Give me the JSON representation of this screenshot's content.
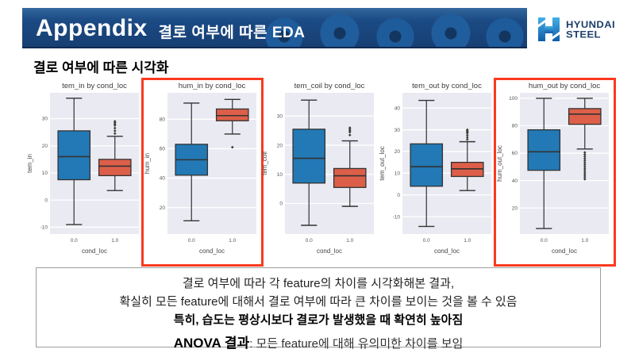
{
  "header": {
    "title": "Appendix",
    "subtitle": "결로 여부에 따른 EDA"
  },
  "logo": {
    "line1": "HYUNDAI",
    "line2": "STEEL"
  },
  "section_title": "결로 여부에 따른 시각화",
  "colors": {
    "header_bg": "#1b4a84",
    "header_text": "#ffffff",
    "logo_navy": "#1c3f69",
    "logo_blue_light": "#45b0e6",
    "logo_blue_dark": "#0f5ca8",
    "highlight_red": "#f93a1f",
    "box_blue": "#2279b5",
    "box_red": "#dd5f49",
    "plot_bg": "#eaeaf2",
    "grid": "#ffffff",
    "box_edge": "#333333",
    "summary_border": "#9c9c9c"
  },
  "chart_data": [
    {
      "type": "box",
      "title": "tem_in by cond_loc",
      "ylabel": "tem_in",
      "xlabel": "cond_loc",
      "categories": [
        "0.0",
        "1.0"
      ],
      "yticks": [
        -10,
        0,
        10,
        20,
        30
      ],
      "ylim": [
        -12.5,
        39.5
      ],
      "highlighted": false,
      "grid": true,
      "boxes": [
        {
          "category": "0.0",
          "color": "#2279b5",
          "whislo": -9,
          "q1": 7.5,
          "med": 16,
          "q3": 25.5,
          "whishi": 37.5,
          "outliers": []
        },
        {
          "category": "1.0",
          "color": "#dd5f49",
          "whislo": 3.5,
          "q1": 9,
          "med": 12.5,
          "q3": 15,
          "whishi": 23.5,
          "outliers": [
            24.5,
            25.5,
            26.5,
            27.5,
            28,
            28.5,
            29
          ]
        }
      ]
    },
    {
      "type": "box",
      "title": "hum_in by cond_loc",
      "ylabel": "hum_in",
      "xlabel": "cond_loc",
      "categories": [
        "0.0",
        "1.0"
      ],
      "yticks": [
        20,
        40,
        60,
        80
      ],
      "ylim": [
        2,
        98
      ],
      "highlighted": true,
      "grid": true,
      "boxes": [
        {
          "category": "0.0",
          "color": "#2279b5",
          "whislo": 11,
          "q1": 42,
          "med": 52.5,
          "q3": 63,
          "whishi": 91,
          "outliers": []
        },
        {
          "category": "1.0",
          "color": "#dd5f49",
          "whislo": 70,
          "q1": 79,
          "med": 82.5,
          "q3": 87,
          "whishi": 93.5,
          "outliers": [
            61
          ]
        }
      ]
    },
    {
      "type": "box",
      "title": "tem_coil by cond_loc",
      "ylabel": "tem_coil",
      "xlabel": "cond_loc",
      "categories": [
        "0.0",
        "1.0"
      ],
      "yticks": [
        0,
        10,
        20,
        30
      ],
      "ylim": [
        -10.5,
        38
      ],
      "highlighted": false,
      "grid": true,
      "boxes": [
        {
          "category": "0.0",
          "color": "#2279b5",
          "whislo": -7.5,
          "q1": 7,
          "med": 15.5,
          "q3": 25.5,
          "whishi": 35.5,
          "outliers": []
        },
        {
          "category": "1.0",
          "color": "#dd5f49",
          "whislo": -1,
          "q1": 5.5,
          "med": 9.5,
          "q3": 12,
          "whishi": 21.5,
          "outliers": [
            23.5,
            24.5,
            25,
            25.5,
            26
          ]
        }
      ]
    },
    {
      "type": "box",
      "title": "tem_out by cond_loc",
      "ylabel": "tem_out_loc",
      "xlabel": "cond_loc",
      "categories": [
        "0.0",
        "1.0"
      ],
      "yticks": [
        -10,
        0,
        10,
        20,
        30,
        40
      ],
      "ylim": [
        -18,
        47
      ],
      "highlighted": false,
      "grid": true,
      "boxes": [
        {
          "category": "0.0",
          "color": "#2279b5",
          "whislo": -14.5,
          "q1": 4,
          "med": 13,
          "q3": 23.5,
          "whishi": 43.5,
          "outliers": []
        },
        {
          "category": "1.0",
          "color": "#dd5f49",
          "whislo": 2,
          "q1": 8.5,
          "med": 12,
          "q3": 15,
          "whishi": 24.5,
          "outliers": [
            25.5,
            26.5,
            27.5,
            28.5,
            29,
            29.5,
            30
          ]
        }
      ]
    },
    {
      "type": "box",
      "title": "hum_out by cond_loc",
      "ylabel": "hum_out_loc",
      "xlabel": "cond_loc",
      "categories": [
        "0.0",
        "1.0"
      ],
      "yticks": [
        20,
        40,
        60,
        80,
        100
      ],
      "ylim": [
        1,
        104
      ],
      "highlighted": true,
      "grid": true,
      "boxes": [
        {
          "category": "0.0",
          "color": "#2279b5",
          "whislo": 5,
          "q1": 47.5,
          "med": 61,
          "q3": 77,
          "whishi": 100,
          "outliers": []
        },
        {
          "category": "1.0",
          "color": "#dd5f49",
          "whislo": 63,
          "q1": 81,
          "med": 88.5,
          "q3": 92.5,
          "whishi": 100,
          "outliers": [
            41,
            42.5,
            44,
            45.5,
            47,
            48.5,
            50,
            51.5,
            53,
            54.5,
            56,
            57.5,
            59,
            60.5
          ]
        }
      ]
    }
  ],
  "summary": {
    "line1": "결로 여부에 따라 각 feature의 차이를 시각화해본 결과,",
    "line2": "확실히 모든 feature에 대해서 결로 여부에 따라 큰 차이를 보이는 것을 볼 수 있음",
    "line3": "특히, 습도는 평상시보다 결로가 발생했을 때 확연히 높아짐",
    "anova_label": "ANOVA 결과",
    "anova_text": ": 모든 feature에 대해 유의미한 차이를 보임"
  }
}
